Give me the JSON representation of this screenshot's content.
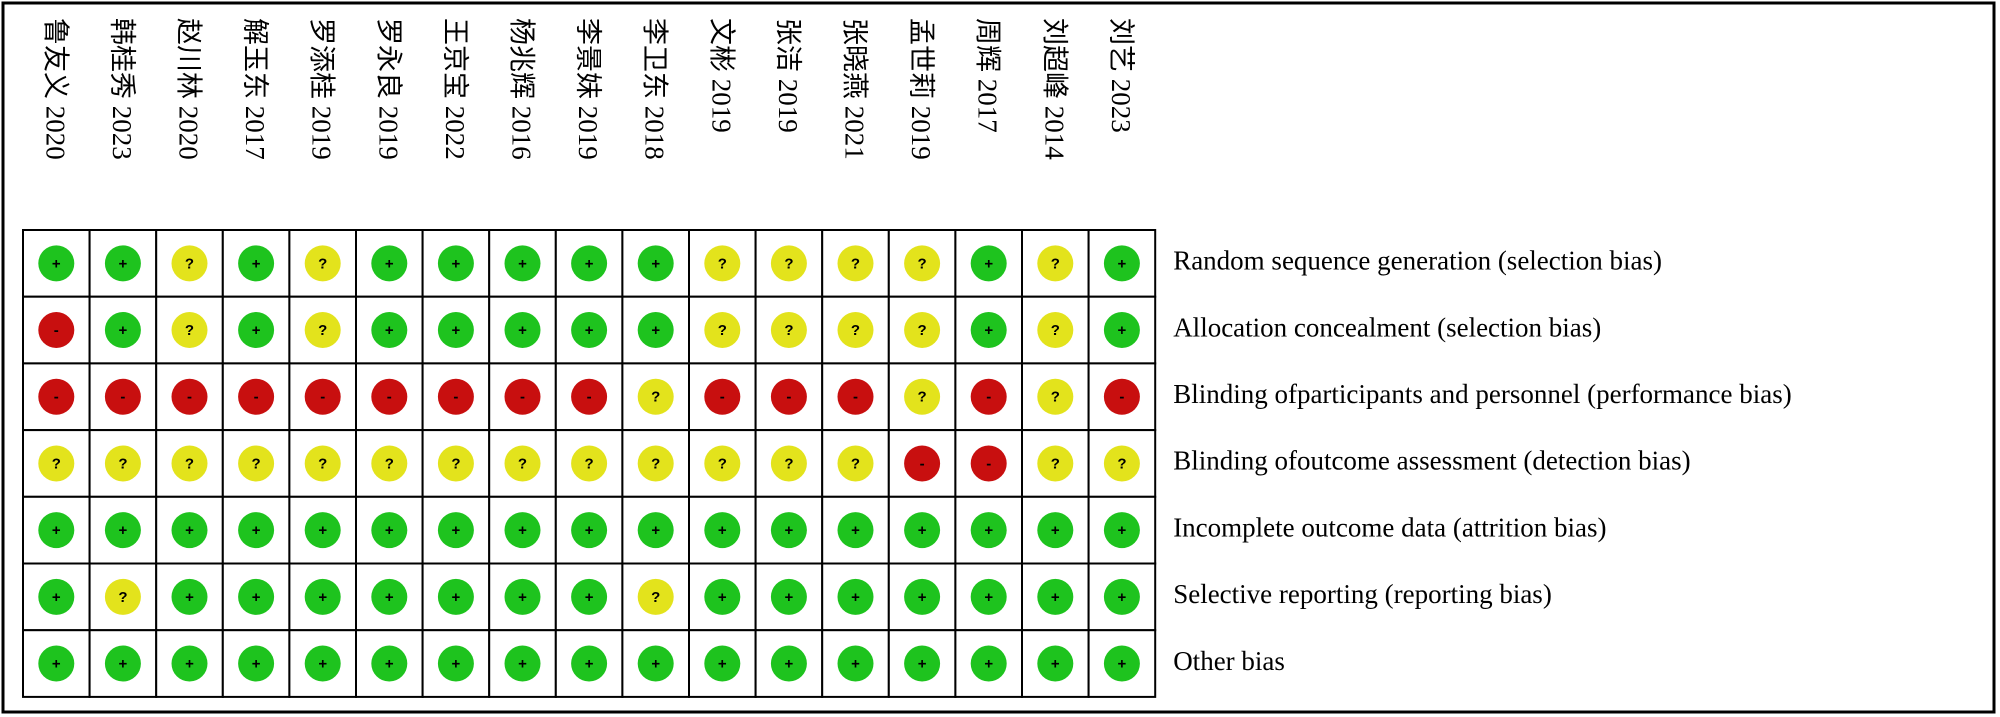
{
  "studies": [
    "鲁友义 2020",
    "韩桂秀 2023",
    "赵川林 2020",
    "解玉东 2017",
    "罗添桂 2019",
    "罗永良 2019",
    "王京宝 2022",
    "杨兆辉 2016",
    "李景妹 2019",
    "李卫东 2018",
    "文彬 2019",
    "张洁 2019",
    "张晓燕 2021",
    "孟世莉 2019",
    "周辉 2017",
    "刘超峰 2014",
    "刘艺 2023"
  ],
  "domains": [
    "Random sequence generation (selection bias)",
    "Allocation concealment (selection bias)",
    "Blinding ofparticipants and personnel (performance bias)",
    "Blinding ofoutcome assessment (detection bias)",
    "Incomplete outcome data (attrition bias)",
    "Selective reporting (reporting bias)",
    "Other bias"
  ],
  "judgments": [
    [
      "+",
      "+",
      "?",
      "+",
      "?",
      "+",
      "+",
      "+",
      "+",
      "+",
      "?",
      "?",
      "?",
      "?",
      "+",
      "?",
      "+"
    ],
    [
      "-",
      "+",
      "?",
      "+",
      "?",
      "+",
      "+",
      "+",
      "+",
      "+",
      "?",
      "?",
      "?",
      "?",
      "+",
      "?",
      "+"
    ],
    [
      "-",
      "-",
      "-",
      "-",
      "-",
      "-",
      "-",
      "-",
      "-",
      "?",
      "-",
      "-",
      "-",
      "?",
      "-",
      "?",
      "-"
    ],
    [
      "?",
      "?",
      "?",
      "?",
      "?",
      "?",
      "?",
      "?",
      "?",
      "?",
      "?",
      "?",
      "?",
      "-",
      "-",
      "?",
      "?"
    ],
    [
      "+",
      "+",
      "+",
      "+",
      "+",
      "+",
      "+",
      "+",
      "+",
      "+",
      "+",
      "+",
      "+",
      "+",
      "+",
      "+",
      "+"
    ],
    [
      "+",
      "?",
      "+",
      "+",
      "+",
      "+",
      "+",
      "+",
      "+",
      "?",
      "+",
      "+",
      "+",
      "+",
      "+",
      "+",
      "+"
    ],
    [
      "+",
      "+",
      "+",
      "+",
      "+",
      "+",
      "+",
      "+",
      "+",
      "+",
      "+",
      "+",
      "+",
      "+",
      "+",
      "+",
      "+"
    ]
  ]
}
